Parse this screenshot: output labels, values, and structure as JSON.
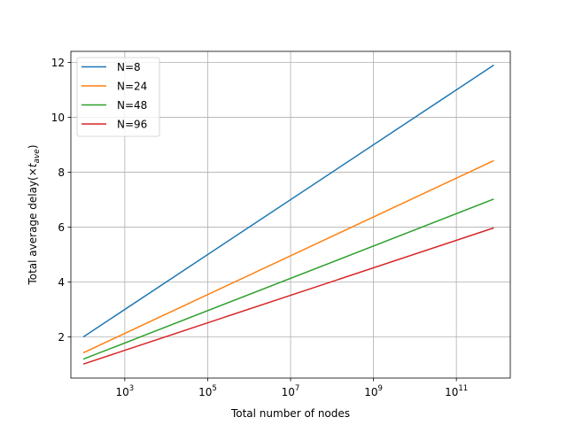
{
  "chart_data": {
    "type": "line",
    "xscale": "log",
    "xlim": [
      50,
      2000000000000
    ],
    "ylim": [
      0.5,
      12.4
    ],
    "grid": true,
    "legend_position": "top-left",
    "xlabel": "Total number of nodes",
    "ylabel_main": "Total average delay(×",
    "ylabel_var": "t",
    "ylabel_sub": "ave",
    "ylabel_end": ")",
    "x_ticks": [
      {
        "value": 1000,
        "base": "10",
        "exp": "3"
      },
      {
        "value": 100000,
        "base": "10",
        "exp": "5"
      },
      {
        "value": 10000000,
        "base": "10",
        "exp": "7"
      },
      {
        "value": 1000000000,
        "base": "10",
        "exp": "9"
      },
      {
        "value": 100000000000,
        "base": "10",
        "exp": "11"
      }
    ],
    "y_ticks": [
      {
        "value": 2,
        "label": "2"
      },
      {
        "value": 4,
        "label": "4"
      },
      {
        "value": 6,
        "label": "6"
      },
      {
        "value": 8,
        "label": "8"
      },
      {
        "value": 10,
        "label": "10"
      },
      {
        "value": 12,
        "label": "12"
      }
    ],
    "series": [
      {
        "name": "N=8",
        "color": "#1f77b4",
        "x": [
          100,
          800000000000
        ],
        "y": [
          2.0,
          11.9
        ]
      },
      {
        "name": "N=24",
        "color": "#ff7f0e",
        "x": [
          100,
          800000000000
        ],
        "y": [
          1.42,
          8.42
        ]
      },
      {
        "name": "N=48",
        "color": "#2ca02c",
        "x": [
          100,
          800000000000
        ],
        "y": [
          1.19,
          7.02
        ]
      },
      {
        "name": "N=96",
        "color": "#d62728",
        "x": [
          100,
          800000000000
        ],
        "y": [
          1.01,
          5.97
        ]
      }
    ]
  }
}
